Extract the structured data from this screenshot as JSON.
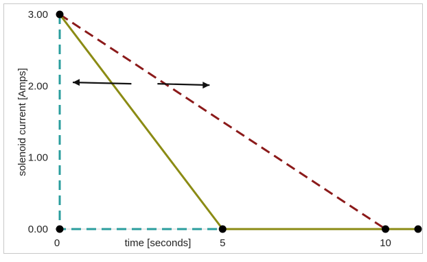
{
  "chart_data": {
    "type": "line",
    "xlabel": "time [seconds]",
    "ylabel": "solenoid current [Amps]",
    "xlim": [
      0,
      11
    ],
    "ylim": [
      0,
      3
    ],
    "xticks": [
      0,
      5,
      10
    ],
    "xtick_labels": [
      "0",
      "5",
      "10"
    ],
    "yticks": [
      0,
      1,
      2,
      3
    ],
    "ytick_labels": [
      "0.00",
      "1.00",
      "2.00",
      "3.00"
    ],
    "grid": false,
    "series": [
      {
        "color": "#2a9d9d",
        "style": "dashed",
        "x": [
          0,
          0,
          11
        ],
        "y": [
          3,
          0,
          0
        ]
      },
      {
        "color": "#8b8b14",
        "style": "solid",
        "x": [
          0,
          5,
          11
        ],
        "y": [
          3,
          0,
          0
        ]
      },
      {
        "color": "#8b1a1a",
        "style": "dashed",
        "x": [
          0,
          10,
          11
        ],
        "y": [
          3,
          0,
          0
        ]
      }
    ],
    "markers": {
      "x": [
        0,
        0,
        5,
        10,
        11
      ],
      "y": [
        3,
        0,
        0,
        0,
        0
      ],
      "color": "#000000"
    },
    "annotations": [
      {
        "type": "arrow",
        "direction": "left",
        "x_from": 2.2,
        "x_to": 0.4,
        "y": 2.05
      },
      {
        "type": "arrow",
        "direction": "right",
        "x_from": 3.0,
        "x_to": 4.6,
        "y": 2.05
      }
    ]
  }
}
